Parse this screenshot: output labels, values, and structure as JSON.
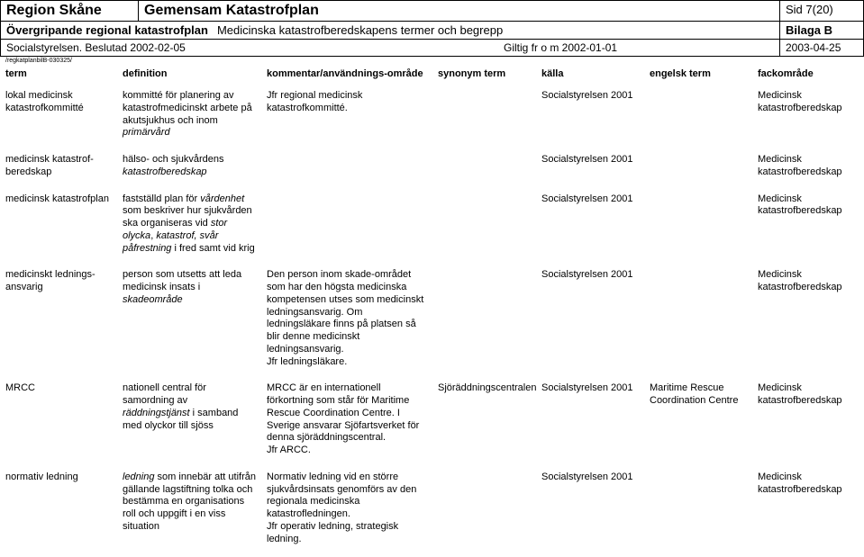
{
  "header": {
    "region": "Region Skåne",
    "title": "Gemensam Katastrofplan",
    "sid": "Sid 7(20)",
    "over_bold": "Övergripande regional katastrofplan",
    "over_rest": " Medicinska katastrofberedskapens termer och begrepp",
    "bilaga": "Bilaga B",
    "soc": "Socialstyrelsen. Beslutad 2002-02-05",
    "giltig": "Giltig fr o m 2002-01-01",
    "date": "2003-04-25",
    "tiny": "/regkatplanbilB-030325/"
  },
  "columns": {
    "term": "term",
    "definition": "definition",
    "kommentar": "kommentar/användnings-område",
    "synonym": "synonym term",
    "kalla": "källa",
    "engelsk": "engelsk term",
    "fack": "fackområde"
  },
  "rows": [
    {
      "term": "lokal medicinsk katastrofkommitté",
      "definition": "kommitté för planering av katastrofmedicinskt arbete på akutsjukhus och inom <i>primärvård</i>",
      "kommentar": "Jfr regional medicinsk katastrofkommitté.",
      "synonym": "",
      "kalla": "Socialstyrelsen 2001",
      "engelsk": "",
      "fack": "Medicinsk katastrofberedskap"
    },
    {
      "term": "medicinsk katastrof-beredskap",
      "definition": "hälso- och sjukvårdens <i>katastrofberedskap</i>",
      "kommentar": "",
      "synonym": "",
      "kalla": "Socialstyrelsen 2001",
      "engelsk": "",
      "fack": "Medicinsk katastrofberedskap"
    },
    {
      "term": "medicinsk katastrofplan",
      "definition": "fastställd plan för <i>vårdenhet</i> som beskriver hur sjukvården ska organiseras vid <i>stor olycka</i>, <i>katastrof, svår påfrestning</i> i fred samt vid krig",
      "kommentar": "",
      "synonym": "",
      "kalla": "Socialstyrelsen 2001",
      "engelsk": "",
      "fack": "Medicinsk katastrofberedskap"
    },
    {
      "term": "medicinskt lednings-ansvarig",
      "definition": "person som utsetts att leda medicinsk insats i <i>skadeområde</i>",
      "kommentar": "Den person inom skade-området som har den högsta medicinska kompetensen utses som medicinskt ledningsansvarig. Om ledningsläkare finns på platsen så blir denne medicinskt ledningsansvarig.<br>Jfr ledningsläkare.",
      "synonym": "",
      "kalla": "Socialstyrelsen 2001",
      "engelsk": "",
      "fack": "Medicinsk katastrofberedskap"
    },
    {
      "term": "MRCC",
      "definition": "nationell central för samordning av <i>räddningstjänst</i> i samband med olyckor till sjöss",
      "kommentar": "MRCC är en internationell förkortning som står för Maritime Rescue Coordination Centre. I Sverige ansvarar Sjöfartsverket för denna sjöräddningscentral.<br>Jfr ARCC.",
      "synonym": "Sjöräddningscentralen",
      "kalla": "Socialstyrelsen 2001",
      "engelsk": "Maritime Rescue Coordination Centre",
      "fack": "Medicinsk katastrofberedskap"
    },
    {
      "term": "normativ ledning",
      "definition": "<i>ledning</i> som innebär att utifrån gällande lagstiftning tolka och bestämma en organisations roll och uppgift i en viss situation",
      "kommentar": "Normativ ledning vid en större sjukvårdsinsats genomförs av den regionala medicinska katastrofledningen.<br>Jfr operativ ledning, strategisk ledning.",
      "synonym": "",
      "kalla": "Socialstyrelsen 2001",
      "engelsk": "",
      "fack": "Medicinsk katastrofberedskap"
    }
  ]
}
